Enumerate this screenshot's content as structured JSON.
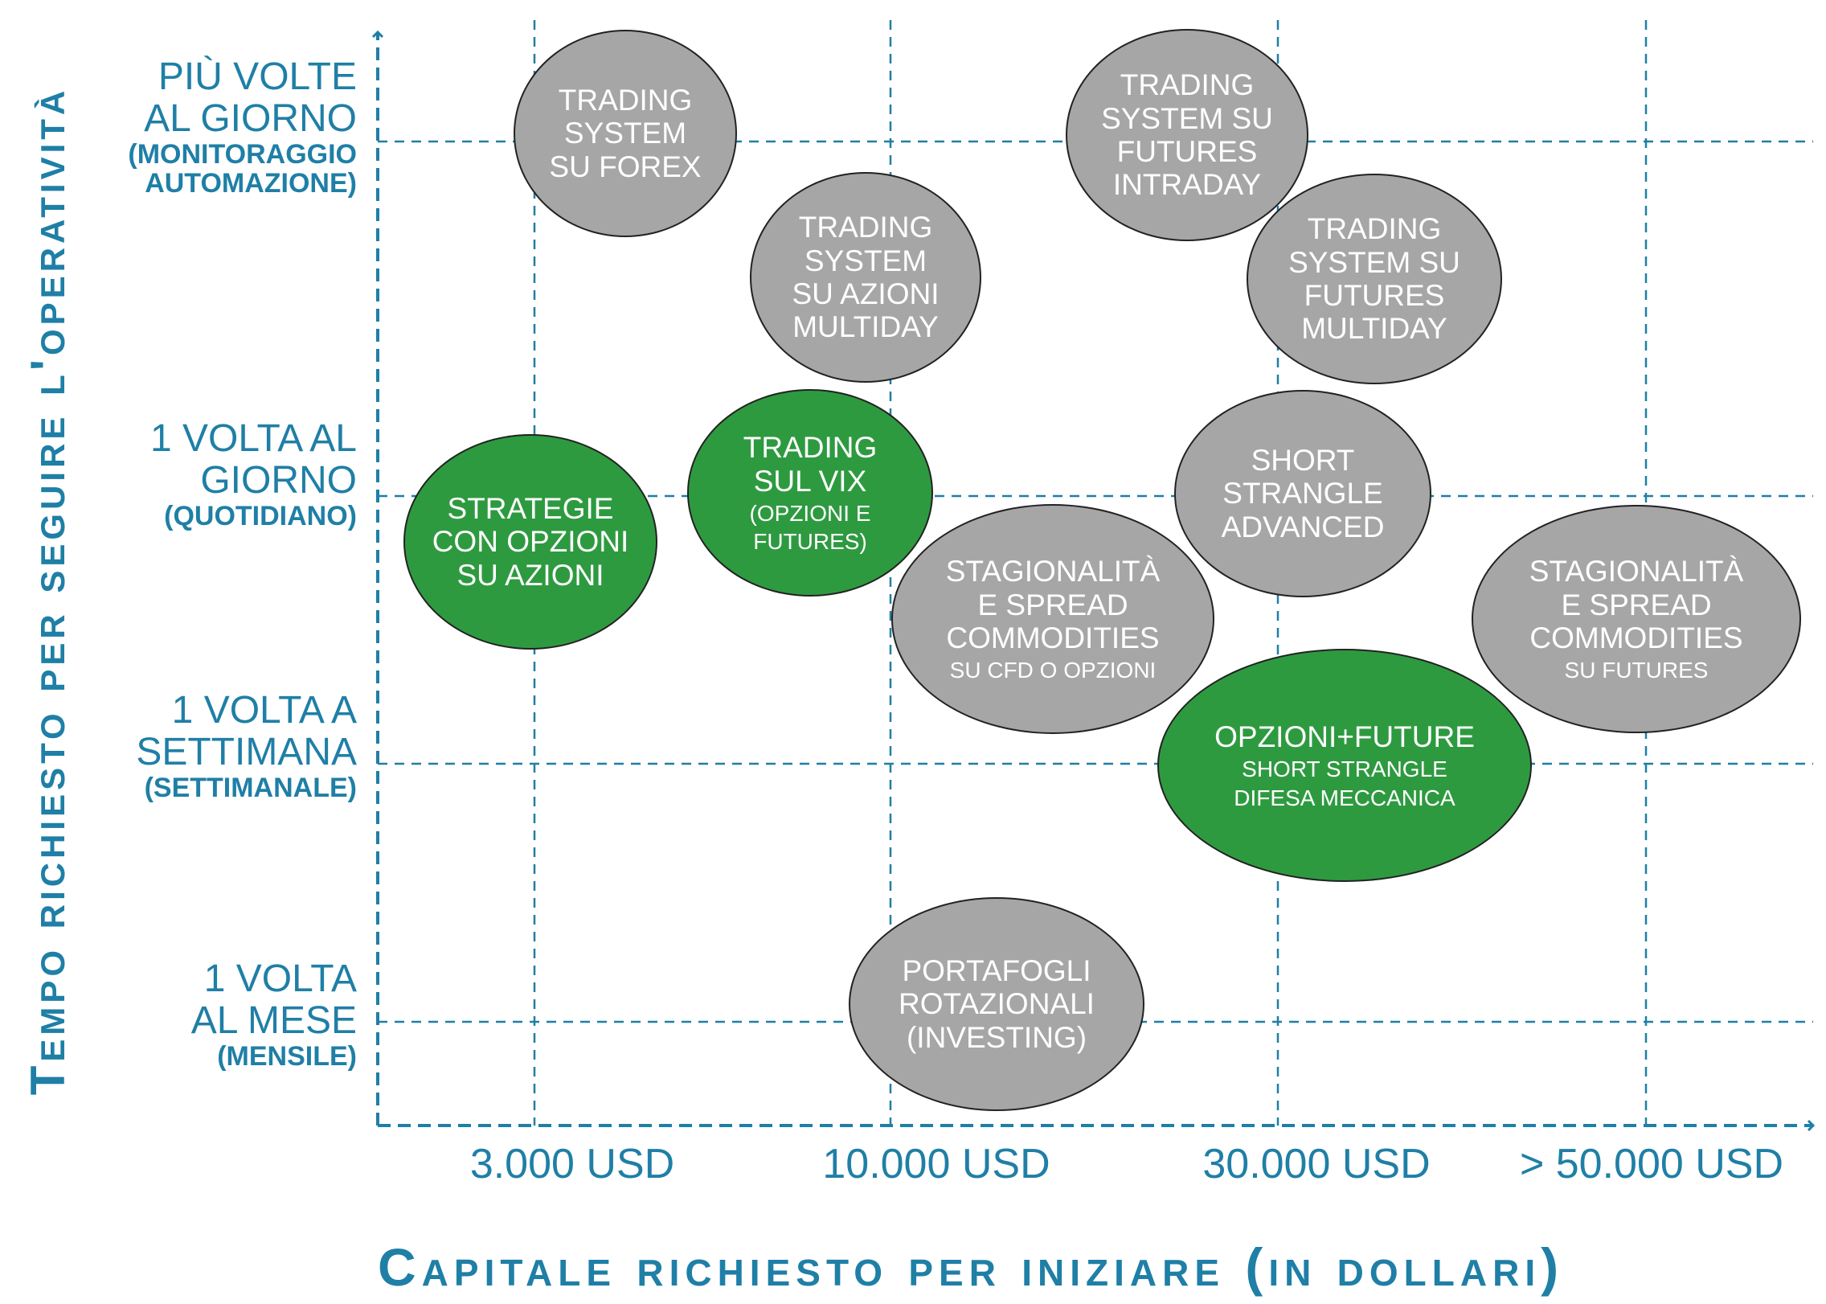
{
  "y_axis": {
    "title": "Tempo richiesto per seguire  l'operatività",
    "levels": [
      {
        "lines": [
          "PIÙ VOLTE",
          "AL GIORNO"
        ],
        "sub": [
          "(MONITORAGGIO",
          "AUTOMAZIONE)"
        ]
      },
      {
        "lines": [
          "1 VOLTA AL",
          "GIORNO"
        ],
        "sub": [
          "(QUOTIDIANO)"
        ]
      },
      {
        "lines": [
          "1 VOLTA A",
          "SETTIMANA"
        ],
        "sub": [
          "(SETTIMANALE)"
        ]
      },
      {
        "lines": [
          "1 VOLTA",
          "AL MESE"
        ],
        "sub": [
          "(MENSILE)"
        ]
      }
    ]
  },
  "x_axis": {
    "title": "Capitale richiesto per iniziare (in dollari)",
    "ticks": [
      "3.000 USD",
      "10.000 USD",
      "30.000 USD",
      "> 50.000 USD"
    ]
  },
  "colors": {
    "axis": "#1f7fa6",
    "gray": "#a6a6a6",
    "green": "#2e9a40",
    "text": "#ffffff"
  },
  "bubbles": [
    {
      "lines": [
        "TRADING",
        "SYSTEM",
        "SU FOREX"
      ],
      "sub": [],
      "color": "gray"
    },
    {
      "lines": [
        "TRADING",
        "SYSTEM SU",
        "FUTURES",
        "INTRADAY"
      ],
      "sub": [],
      "color": "gray"
    },
    {
      "lines": [
        "TRADING",
        "SYSTEM",
        "SU AZIONI",
        "MULTIDAY"
      ],
      "sub": [],
      "color": "gray"
    },
    {
      "lines": [
        "TRADING",
        "SYSTEM SU",
        "FUTURES",
        "MULTIDAY"
      ],
      "sub": [],
      "color": "gray"
    },
    {
      "lines": [
        "STRATEGIE",
        "CON OPZIONI",
        "SU AZIONI"
      ],
      "sub": [],
      "color": "green"
    },
    {
      "lines": [
        "TRADING",
        "SUL VIX"
      ],
      "sub": [
        "(OPZIONI E",
        "FUTURES)"
      ],
      "color": "green"
    },
    {
      "lines": [
        "SHORT",
        "STRANGLE",
        "ADVANCED"
      ],
      "sub": [],
      "color": "gray"
    },
    {
      "lines": [
        "STAGIONALITÀ",
        "E SPREAD",
        "COMMODITIES"
      ],
      "sub": [
        "SU CFD O OPZIONI"
      ],
      "color": "gray"
    },
    {
      "lines": [
        "STAGIONALITÀ",
        "E SPREAD",
        "COMMODITIES"
      ],
      "sub": [
        "SU FUTURES"
      ],
      "color": "gray"
    },
    {
      "lines": [
        "OPZIONI+FUTURE"
      ],
      "sub": [
        "SHORT STRANGLE",
        "DIFESA MECCANICA"
      ],
      "color": "green"
    },
    {
      "lines": [
        "PORTAFOGLI",
        "ROTAZIONALI",
        "(INVESTING)"
      ],
      "sub": [],
      "color": "gray"
    }
  ]
}
